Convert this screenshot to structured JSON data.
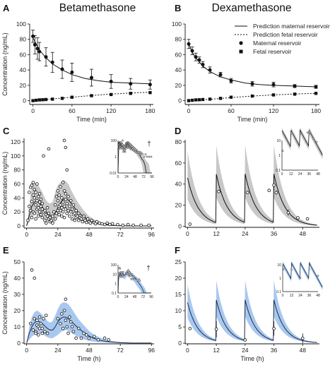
{
  "titles": {
    "left": "Betamethasone",
    "right": "Dexamethasone"
  },
  "legend": {
    "pred_maternal": "Prediction maternal reservoir",
    "pred_fetal": "Prediction fetal reservoir",
    "maternal": "Maternal reservoir",
    "fetal": "Fetal reservoir"
  },
  "colors": {
    "grey_band": "#c8c8c8",
    "blue_band": "#a9c8ef",
    "blue_line": "#1c2b4a",
    "black": "#111111"
  },
  "chart_data": [
    {
      "panel": "A",
      "type": "line",
      "xlabel": "Time (min)",
      "ylabel": "Concentration (ng/mL)",
      "xlim": [
        -5,
        185
      ],
      "ylim": [
        -5,
        100
      ],
      "xticks": [
        0,
        60,
        120,
        180
      ],
      "yticks": [
        0,
        20,
        40,
        60,
        80,
        100
      ],
      "series": [
        {
          "name": "Prediction maternal reservoir",
          "style": "solid",
          "x": [
            0,
            5,
            10,
            20,
            30,
            45,
            60,
            80,
            100,
            120,
            150,
            180
          ],
          "y": [
            82,
            74,
            66,
            56,
            48,
            40,
            34,
            29,
            26,
            24,
            23,
            22
          ]
        },
        {
          "name": "Prediction fetal reservoir",
          "style": "dotted",
          "x": [
            0,
            20,
            40,
            60,
            80,
            100,
            120,
            140,
            160,
            180
          ],
          "y": [
            0,
            1.5,
            3,
            4.5,
            6,
            7.3,
            8.5,
            9.5,
            10.3,
            11
          ]
        },
        {
          "name": "Maternal reservoir",
          "style": "circle",
          "x": [
            0,
            3,
            7,
            10,
            20,
            30,
            45,
            60,
            90,
            120,
            150,
            180
          ],
          "y": [
            84,
            73,
            68,
            64,
            57,
            50,
            41,
            37,
            30,
            25,
            22,
            21
          ],
          "err": [
            8,
            12,
            14,
            12,
            12,
            13,
            12,
            12,
            11,
            9,
            7,
            6
          ]
        },
        {
          "name": "Fetal reservoir",
          "style": "square",
          "x": [
            0,
            5,
            10,
            15,
            20,
            30,
            45,
            60,
            90,
            120,
            150,
            180
          ],
          "y": [
            0,
            0.5,
            1,
            1.2,
            1.5,
            2,
            3,
            4.5,
            6.5,
            8,
            9.5,
            10.5
          ]
        }
      ]
    },
    {
      "panel": "B",
      "type": "line",
      "xlabel": "Time (min)",
      "ylabel": "",
      "xlim": [
        -5,
        185
      ],
      "ylim": [
        -5,
        100
      ],
      "xticks": [
        0,
        60,
        120,
        180
      ],
      "yticks": [
        0,
        20,
        40,
        60,
        80,
        100
      ],
      "series": [
        {
          "name": "Prediction maternal reservoir",
          "style": "solid",
          "x": [
            0,
            5,
            10,
            20,
            30,
            45,
            60,
            80,
            100,
            120,
            150,
            180
          ],
          "y": [
            74,
            63,
            56,
            45,
            38,
            31,
            27,
            23,
            21,
            20,
            19,
            18
          ]
        },
        {
          "name": "Prediction fetal reservoir",
          "style": "dotted",
          "x": [
            0,
            20,
            40,
            60,
            80,
            100,
            120,
            140,
            160,
            180
          ],
          "y": [
            0,
            1.2,
            2.5,
            4,
            5.3,
            6.5,
            7.5,
            8.3,
            9,
            9.5
          ]
        },
        {
          "name": "Maternal reservoir",
          "style": "circle",
          "x": [
            0,
            5,
            10,
            15,
            20,
            30,
            45,
            60,
            90,
            120,
            150,
            180
          ],
          "y": [
            74,
            65,
            57,
            53,
            47,
            40,
            34,
            26,
            22,
            21,
            19,
            18
          ],
          "err": [
            6,
            5,
            5,
            4,
            4,
            4,
            3,
            3,
            3,
            3,
            2,
            2
          ]
        },
        {
          "name": "Fetal reservoir",
          "style": "square",
          "x": [
            0,
            5,
            10,
            15,
            20,
            30,
            45,
            60,
            90,
            120,
            150,
            180
          ],
          "y": [
            0,
            0.5,
            1,
            1.2,
            1.5,
            2,
            3,
            4.5,
            6,
            7.5,
            8.5,
            9.5
          ]
        }
      ]
    },
    {
      "panel": "C",
      "type": "scatter",
      "xlabel": "",
      "ylabel": "Concentration (ng/mL)",
      "xlim": [
        -2,
        98
      ],
      "ylim": [
        -3,
        125
      ],
      "xticks": [
        0,
        24,
        48,
        72,
        96
      ],
      "yticks": [
        0,
        20,
        40,
        60,
        80,
        100,
        120
      ],
      "band": {
        "x": [
          0,
          2,
          4,
          6,
          8,
          10,
          12,
          14,
          16,
          18,
          20,
          22,
          24,
          26,
          28,
          30,
          32,
          34,
          36,
          38,
          40,
          44,
          48,
          52,
          56,
          60,
          64,
          68,
          72,
          76,
          80,
          84,
          88,
          92,
          96
        ],
        "lo": [
          0,
          6,
          12,
          16,
          16,
          14,
          11,
          8,
          6,
          4,
          4,
          6,
          12,
          18,
          24,
          26,
          24,
          20,
          16,
          12,
          9,
          5,
          3,
          2,
          1,
          0.6,
          0.3,
          0.1,
          0,
          0,
          0,
          0,
          0,
          0,
          0
        ],
        "hi": [
          0,
          30,
          55,
          62,
          60,
          55,
          48,
          40,
          34,
          32,
          34,
          48,
          58,
          62,
          66,
          64,
          60,
          52,
          45,
          38,
          32,
          22,
          14,
          9,
          6,
          4,
          2.5,
          1.5,
          1,
          0.6,
          0.3,
          0.2,
          0.1,
          0,
          0
        ]
      },
      "line": {
        "x": [
          0,
          2,
          4,
          6,
          8,
          10,
          12,
          14,
          16,
          18,
          20,
          22,
          24,
          26,
          28,
          30,
          32,
          34,
          36,
          38,
          40,
          44,
          48,
          52,
          56,
          60,
          64,
          68,
          72,
          76,
          80,
          84,
          88,
          92,
          96
        ],
        "y": [
          0,
          15,
          28,
          34,
          35,
          32,
          27,
          22,
          18,
          15,
          14,
          18,
          26,
          33,
          38,
          39,
          37,
          33,
          28,
          23,
          19,
          13,
          8,
          5,
          3,
          2,
          1,
          0.5,
          0.3,
          0.1,
          0,
          0,
          0,
          0,
          0
        ]
      },
      "points": {
        "x": [
          1,
          2,
          2,
          3,
          3,
          4,
          4,
          4,
          5,
          5,
          5,
          6,
          6,
          6,
          7,
          7,
          7,
          8,
          8,
          8,
          9,
          9,
          9,
          10,
          10,
          10,
          11,
          11,
          11,
          12,
          12,
          12,
          13,
          13,
          14,
          14,
          15,
          15,
          16,
          16,
          17,
          17,
          18,
          18,
          19,
          20,
          20,
          21,
          22,
          22,
          23,
          23,
          24,
          24,
          24,
          25,
          25,
          25,
          26,
          26,
          26,
          27,
          27,
          27,
          28,
          28,
          28,
          29,
          29,
          29,
          30,
          30,
          30,
          31,
          31,
          32,
          32,
          33,
          33,
          34,
          34,
          35,
          35,
          36,
          36,
          37,
          37,
          38,
          38,
          39,
          40,
          40,
          41,
          42,
          43,
          44,
          45,
          46,
          47,
          48,
          49,
          50,
          52,
          53,
          54,
          56,
          58,
          60,
          62,
          64,
          66,
          70,
          74,
          78,
          82,
          88,
          94
        ],
        "y": [
          8,
          28,
          48,
          22,
          55,
          35,
          58,
          12,
          44,
          62,
          20,
          40,
          52,
          18,
          30,
          48,
          10,
          36,
          60,
          24,
          42,
          26,
          14,
          34,
          20,
          46,
          28,
          16,
          38,
          24,
          12,
          32,
          20,
          100,
          8,
          22,
          16,
          4,
          26,
          14,
          10,
          18,
          6,
          12,
          8,
          4,
          14,
          20,
          30,
          10,
          42,
          18,
          22,
          36,
          50,
          28,
          44,
          16,
          56,
          30,
          22,
          40,
          26,
          14,
          62,
          34,
          20,
          50,
          28,
          12,
          38,
          24,
          46,
          32,
          18,
          42,
          22,
          28,
          14,
          36,
          20,
          24,
          10,
          30,
          16,
          18,
          8,
          22,
          12,
          14,
          18,
          8,
          12,
          10,
          6,
          14,
          8,
          5,
          10,
          6,
          4,
          8,
          5,
          3,
          6,
          4,
          3,
          2,
          4,
          2,
          3,
          2,
          1,
          2,
          1,
          1,
          1
        ]
      },
      "extra_points": {
        "x": [
          29,
          30,
          17,
          31
        ],
        "y": [
          122,
          112,
          110,
          80
        ]
      },
      "inset": {
        "xticks": [
          0,
          24,
          48,
          72,
          96
        ],
        "yticks": [
          "0.01",
          "1",
          "100"
        ],
        "marker": "†"
      }
    },
    {
      "panel": "D",
      "type": "line",
      "xlabel": "",
      "ylabel": "",
      "xlim": [
        -1,
        55
      ],
      "ylim": [
        -1,
        82
      ],
      "xticks": [
        0,
        12,
        24,
        36,
        48
      ],
      "yticks": [
        0,
        20,
        40,
        60,
        80
      ],
      "doses_at": [
        0,
        12,
        24,
        36
      ],
      "peak": 46,
      "half_life_h": 3.2,
      "band_scale": [
        0.55,
        1.55
      ],
      "points": {
        "x": [
          1,
          13,
          25,
          34,
          36,
          37,
          42,
          46,
          50
        ],
        "y": [
          2,
          33,
          32,
          34,
          39,
          32,
          13,
          8,
          7
        ]
      },
      "err": [
        0,
        0,
        0,
        0,
        5,
        2,
        3,
        0,
        0
      ],
      "inset": {
        "xticks": [
          0,
          12,
          24,
          36,
          48
        ],
        "yticks": [
          "0.1",
          "1",
          "10"
        ]
      }
    },
    {
      "panel": "E",
      "type": "scatter",
      "xlabel": "Time (h)",
      "ylabel": "Concentration (ng/mL)",
      "xlim": [
        -2,
        98
      ],
      "ylim": [
        -0.5,
        50
      ],
      "xticks": [
        0,
        24,
        48,
        72,
        96
      ],
      "yticks": [
        0,
        10,
        20,
        30,
        40,
        50
      ],
      "band": {
        "x": [
          0,
          2,
          4,
          6,
          8,
          10,
          12,
          14,
          16,
          18,
          20,
          22,
          24,
          26,
          28,
          30,
          32,
          34,
          36,
          38,
          40,
          44,
          48,
          52,
          56,
          60,
          64,
          68,
          72,
          76,
          80,
          84,
          88,
          92,
          96
        ],
        "lo": [
          0,
          2,
          4,
          5,
          6,
          6,
          5.5,
          4.5,
          3.5,
          3,
          3,
          4,
          5,
          6.5,
          7.5,
          8,
          7.5,
          6.5,
          5.5,
          4.5,
          3.5,
          2.2,
          1.3,
          0.8,
          0.5,
          0.3,
          0.2,
          0.1,
          0,
          0,
          0,
          0,
          0,
          0,
          0
        ],
        "hi": [
          0,
          10,
          16,
          19,
          20,
          19,
          17.5,
          15.5,
          13.5,
          12.5,
          13.5,
          17,
          21,
          24,
          25,
          25,
          24,
          22,
          19.5,
          17,
          14.5,
          11,
          7.5,
          5,
          3.5,
          2.2,
          1.5,
          1,
          0.6,
          0.4,
          0.2,
          0.1,
          0,
          0,
          0
        ]
      },
      "line": {
        "x": [
          0,
          2,
          4,
          6,
          8,
          10,
          12,
          14,
          16,
          18,
          20,
          22,
          24,
          26,
          28,
          30,
          32,
          34,
          36,
          38,
          40,
          44,
          48,
          52,
          56,
          60,
          64,
          68,
          72,
          76,
          80,
          84,
          88,
          92,
          96
        ],
        "y": [
          0,
          6,
          10,
          12.5,
          13.5,
          13,
          12,
          10.5,
          9,
          8,
          8,
          10,
          13,
          15,
          16,
          16,
          15,
          13.5,
          12,
          10.5,
          9,
          6.5,
          4.3,
          2.8,
          1.8,
          1.1,
          0.7,
          0.4,
          0.2,
          0.1,
          0,
          0,
          0,
          0,
          0
        ]
      },
      "points": {
        "x": [
          3,
          4,
          5,
          6,
          6,
          7,
          7,
          8,
          8,
          9,
          9,
          10,
          10,
          11,
          12,
          12,
          13,
          14,
          15,
          16,
          24,
          26,
          27,
          28,
          29,
          30,
          30,
          31,
          32,
          33,
          34,
          35,
          36,
          38,
          40,
          42,
          44,
          46,
          48,
          52,
          55,
          60,
          63
        ],
        "y": [
          12,
          45,
          8,
          15,
          40,
          7,
          6,
          11,
          14,
          10,
          5,
          9,
          16,
          12,
          6,
          9,
          15,
          7,
          17,
          6,
          15,
          12,
          18,
          9,
          20,
          14,
          27,
          10,
          6,
          16,
          13,
          10,
          7,
          3,
          9,
          3,
          6,
          5,
          3,
          4,
          2,
          3,
          2
        ]
      },
      "inset": {
        "xticks": [
          0,
          24,
          48,
          72,
          96
        ],
        "yticks": [
          "0.1",
          "1",
          "10",
          "100"
        ],
        "marker": "†"
      }
    },
    {
      "panel": "F",
      "type": "line",
      "xlabel": "Time (h)",
      "ylabel": "",
      "xlim": [
        -1,
        55
      ],
      "ylim": [
        -0.2,
        25
      ],
      "xticks": [
        0,
        12,
        24,
        36,
        48
      ],
      "yticks": [
        0,
        5,
        10,
        15,
        20,
        25
      ],
      "doses_at": [
        0,
        12,
        24,
        36
      ],
      "peak": 12.5,
      "half_life_h": 3.0,
      "band_scale": [
        0.62,
        1.45
      ],
      "points": {
        "x": [
          1,
          12,
          24,
          36,
          48
        ],
        "y": [
          4.5,
          4.3,
          1.0,
          4.5,
          1.5
        ]
      },
      "err": [
        0,
        2.5,
        0,
        2.2,
        1.5
      ],
      "inset": {
        "xticks": [
          0,
          12,
          24,
          36,
          48
        ],
        "yticks": [
          "0.1",
          "1",
          "10"
        ]
      }
    }
  ]
}
